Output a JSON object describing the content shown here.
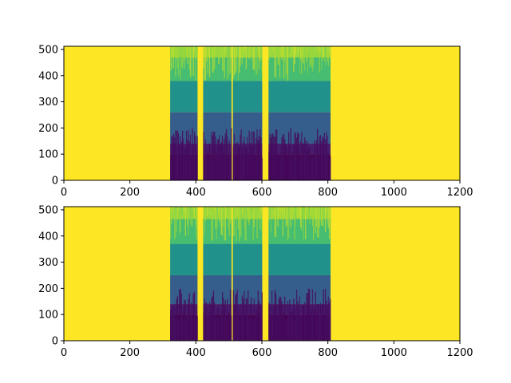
{
  "chart_data": [
    {
      "type": "heatmap",
      "title": "",
      "xlabel": "",
      "ylabel": "",
      "xlim": [
        0,
        1200
      ],
      "ylim": [
        0,
        512
      ],
      "x_ticks": [
        "0",
        "200",
        "400",
        "600",
        "800",
        "1000",
        "1200"
      ],
      "y_ticks": [
        "0",
        "100",
        "200",
        "300",
        "400",
        "500"
      ],
      "x_tick_values": [
        0,
        200,
        400,
        600,
        800,
        1000,
        1200
      ],
      "y_tick_values": [
        0,
        100,
        200,
        300,
        400,
        500
      ],
      "colormap": "viridis",
      "background_value": 1.0,
      "active_segments": [
        [
          322,
          405
        ],
        [
          422,
          508
        ],
        [
          512,
          601
        ],
        [
          620,
          808
        ]
      ],
      "gap_columns": [
        [
          405,
          422
        ],
        [
          508,
          512
        ],
        [
          601,
          620
        ]
      ],
      "intensity_profile": [
        {
          "y_from": 0,
          "y_to": 100,
          "value": 0.0
        },
        {
          "y_from": 100,
          "y_to": 140,
          "value": 0.1
        },
        {
          "y_from": 140,
          "y_to": 260,
          "value": 0.3
        },
        {
          "y_from": 260,
          "y_to": 380,
          "value": 0.5
        },
        {
          "y_from": 380,
          "y_to": 470,
          "value": 0.7
        },
        {
          "y_from": 470,
          "y_to": 512,
          "value": 0.85
        }
      ],
      "grid": false
    },
    {
      "type": "heatmap",
      "title": "",
      "xlabel": "",
      "ylabel": "",
      "xlim": [
        0,
        1200
      ],
      "ylim": [
        0,
        512
      ],
      "x_ticks": [
        "0",
        "200",
        "400",
        "600",
        "800",
        "1000",
        "1200"
      ],
      "y_ticks": [
        "0",
        "100",
        "200",
        "300",
        "400",
        "500"
      ],
      "x_tick_values": [
        0,
        200,
        400,
        600,
        800,
        1000,
        1200
      ],
      "y_tick_values": [
        0,
        100,
        200,
        300,
        400,
        500
      ],
      "colormap": "viridis",
      "background_value": 1.0,
      "active_segments": [
        [
          322,
          405
        ],
        [
          422,
          508
        ],
        [
          512,
          601
        ],
        [
          620,
          808
        ]
      ],
      "gap_columns": [
        [
          405,
          422
        ],
        [
          508,
          512
        ],
        [
          601,
          620
        ]
      ],
      "intensity_profile": [
        {
          "y_from": 0,
          "y_to": 100,
          "value": 0.0
        },
        {
          "y_from": 100,
          "y_to": 140,
          "value": 0.1
        },
        {
          "y_from": 140,
          "y_to": 250,
          "value": 0.3
        },
        {
          "y_from": 250,
          "y_to": 370,
          "value": 0.5
        },
        {
          "y_from": 370,
          "y_to": 465,
          "value": 0.7
        },
        {
          "y_from": 465,
          "y_to": 512,
          "value": 0.85
        }
      ],
      "grid": false
    }
  ]
}
